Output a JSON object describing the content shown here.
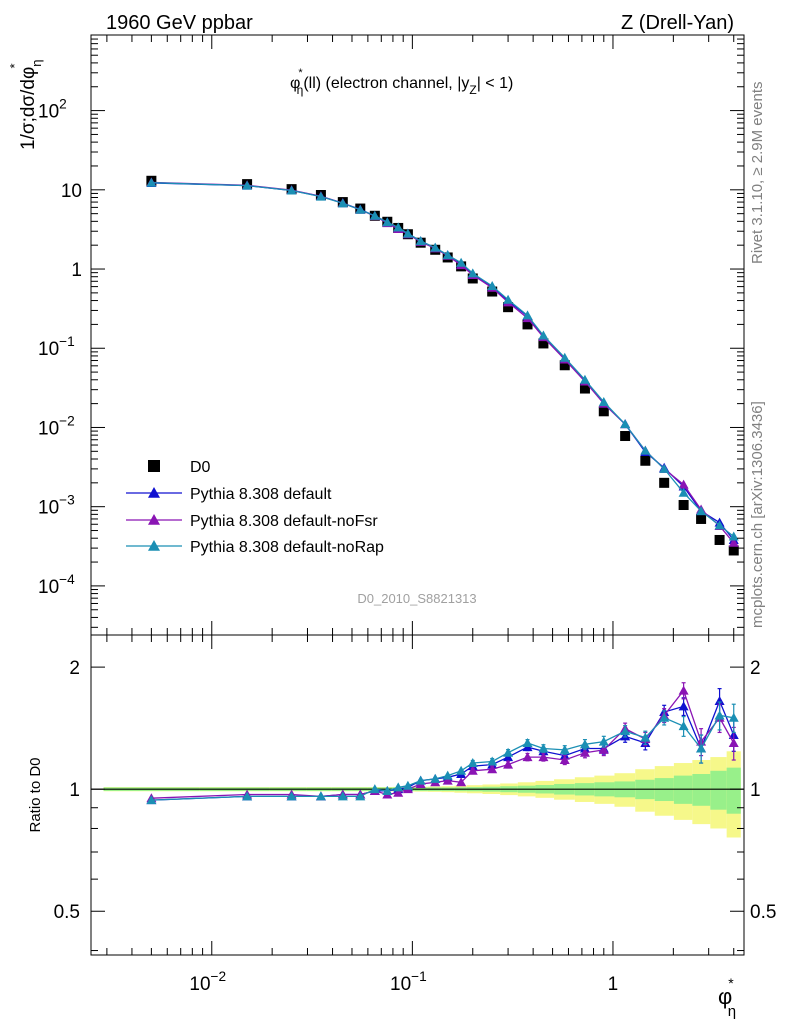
{
  "header": {
    "left": "1960 GeV ppbar",
    "right": "Z (Drell-Yan)"
  },
  "side_labels": {
    "rivet": "Rivet 3.1.10, ≥ 2.9M events",
    "mcplots": "mcplots.cern.ch [arXiv:1306.3436]"
  },
  "watermark": "D0_2010_S8821313",
  "chart_data": [
    {
      "type": "scatter",
      "title": "φ*η(ll) (electron channel, |yZ| < 1)",
      "title_parts": {
        "phi": "φ",
        "star": "*",
        "eta": "η",
        "after_phi": "(ll) (electron channel, |y",
        "z": "Z",
        "tail": "| < 1)"
      },
      "ylabel": "1/σ;dσ/dφ*η",
      "ylabel_parts": {
        "main": "1/σ;dσ/dφ",
        "eta": "η",
        "star": "*"
      },
      "xlabel": "φ*η",
      "xlabel_parts": {
        "phi": "φ",
        "eta": "η",
        "star": "*"
      },
      "xscale": "log",
      "yscale": "log",
      "xlim": [
        0.0025,
        4.5
      ],
      "ylim": [
        2.4e-05,
        900
      ],
      "x_ticks": [
        {
          "base": "10",
          "exp": "−2",
          "v": 0.01
        },
        {
          "base": "10",
          "exp": "−1",
          "v": 0.1
        },
        {
          "base": "1",
          "exp": "",
          "v": 1
        }
      ],
      "y_ticks": [
        {
          "base": "10",
          "exp": "−4",
          "v": 0.0001
        },
        {
          "base": "10",
          "exp": "−3",
          "v": 0.001
        },
        {
          "base": "10",
          "exp": "−2",
          "v": 0.01
        },
        {
          "base": "10",
          "exp": "−1",
          "v": 0.1
        },
        {
          "base": "1",
          "exp": "",
          "v": 1
        },
        {
          "base": "10",
          "exp": "",
          "v": 10
        },
        {
          "base": "10",
          "exp": "2",
          "v": 100
        }
      ],
      "legend_position": "bottom-left",
      "x": [
        0.005,
        0.015,
        0.025,
        0.035,
        0.045,
        0.055,
        0.065,
        0.075,
        0.085,
        0.095,
        0.11,
        0.13,
        0.15,
        0.175,
        0.2,
        0.25,
        0.3,
        0.375,
        0.45,
        0.575,
        0.725,
        0.9,
        1.15,
        1.45,
        1.8,
        2.25,
        2.75,
        3.4,
        4.0
      ],
      "series": [
        {
          "name": "D0",
          "color": "#000000",
          "marker": "square",
          "values": [
            13.0,
            11.8,
            10.2,
            8.6,
            7.0,
            5.8,
            4.7,
            3.95,
            3.3,
            2.75,
            2.15,
            1.75,
            1.4,
            1.08,
            0.76,
            0.52,
            0.33,
            0.2,
            0.115,
            0.061,
            0.031,
            0.016,
            0.0078,
            0.0038,
            0.002,
            0.00105,
            0.0007,
            0.00038,
            0.00028
          ]
        },
        {
          "name": "Pythia 8.308 default",
          "color": "#1010d0",
          "marker": "triangle",
          "values": [
            12.2,
            11.3,
            9.8,
            8.25,
            6.8,
            5.65,
            4.7,
            3.9,
            3.3,
            2.8,
            2.25,
            1.85,
            1.5,
            1.18,
            0.87,
            0.6,
            0.395,
            0.255,
            0.142,
            0.074,
            0.039,
            0.02,
            0.011,
            0.0049,
            0.0031,
            0.0018,
            0.00088,
            0.00063,
            0.00038
          ]
        },
        {
          "name": "Pythia 8.308 default-noFsr",
          "color": "#8a14b4",
          "marker": "triangle",
          "values": [
            12.4,
            11.4,
            9.9,
            8.3,
            6.8,
            5.6,
            4.65,
            3.8,
            3.2,
            2.75,
            2.2,
            1.82,
            1.47,
            1.12,
            0.84,
            0.58,
            0.38,
            0.24,
            0.138,
            0.072,
            0.038,
            0.02,
            0.011,
            0.0051,
            0.003,
            0.0019,
            0.00092,
            0.00057,
            0.00035
          ]
        },
        {
          "name": "Pythia 8.308 default-noRap",
          "color": "#1b8fb4",
          "marker": "triangle",
          "values": [
            12.3,
            11.3,
            9.8,
            8.2,
            6.75,
            5.6,
            4.7,
            3.9,
            3.35,
            2.8,
            2.25,
            1.86,
            1.5,
            1.2,
            0.88,
            0.61,
            0.41,
            0.26,
            0.145,
            0.076,
            0.04,
            0.021,
            0.011,
            0.0051,
            0.003,
            0.0015,
            0.00088,
            0.00058,
            0.00042
          ]
        }
      ]
    },
    {
      "type": "line",
      "ylabel": "Ratio to D0",
      "yscale": "log",
      "ylim": [
        0.39,
        2.4
      ],
      "y_ticks": [
        {
          "label": "0.5",
          "v": 0.5
        },
        {
          "label": "1",
          "v": 1
        },
        {
          "label": "2",
          "v": 2
        }
      ],
      "band_colors": {
        "inner": "#98f08a",
        "outer": "#f6f88a"
      },
      "band_inner_halfwidth": [
        0.01,
        0.01,
        0.01,
        0.01,
        0.01,
        0.01,
        0.01,
        0.01,
        0.01,
        0.01,
        0.01,
        0.01,
        0.01,
        0.011,
        0.012,
        0.014,
        0.017,
        0.02,
        0.024,
        0.03,
        0.035,
        0.04,
        0.045,
        0.055,
        0.065,
        0.08,
        0.09,
        0.11,
        0.13
      ],
      "band_outer_halfwidth": [
        0.012,
        0.012,
        0.012,
        0.012,
        0.012,
        0.012,
        0.012,
        0.012,
        0.013,
        0.013,
        0.014,
        0.015,
        0.017,
        0.02,
        0.023,
        0.027,
        0.033,
        0.04,
        0.048,
        0.058,
        0.07,
        0.08,
        0.095,
        0.12,
        0.14,
        0.16,
        0.18,
        0.2,
        0.24
      ],
      "series": [
        {
          "name": "Pythia 8.308 default",
          "color": "#1010d0",
          "values": [
            0.94,
            0.96,
            0.96,
            0.96,
            0.97,
            0.97,
            0.99,
            0.99,
            1.0,
            1.01,
            1.05,
            1.06,
            1.07,
            1.09,
            1.14,
            1.15,
            1.2,
            1.27,
            1.24,
            1.21,
            1.26,
            1.26,
            1.35,
            1.3,
            1.55,
            1.6,
            1.26,
            1.65,
            1.36
          ],
          "errors": [
            0.01,
            0.01,
            0.01,
            0.01,
            0.01,
            0.01,
            0.01,
            0.01,
            0.01,
            0.01,
            0.012,
            0.012,
            0.013,
            0.015,
            0.017,
            0.02,
            0.022,
            0.025,
            0.027,
            0.03,
            0.035,
            0.04,
            0.045,
            0.05,
            0.06,
            0.08,
            0.1,
            0.12,
            0.12
          ]
        },
        {
          "name": "Pythia 8.308 default-noFsr",
          "color": "#8a14b4",
          "values": [
            0.95,
            0.97,
            0.97,
            0.96,
            0.97,
            0.97,
            0.99,
            0.97,
            0.98,
            1.0,
            1.03,
            1.04,
            1.05,
            1.04,
            1.11,
            1.12,
            1.15,
            1.2,
            1.2,
            1.18,
            1.23,
            1.25,
            1.41,
            1.33,
            1.52,
            1.75,
            1.31,
            1.5,
            1.3
          ],
          "errors": [
            0.01,
            0.01,
            0.01,
            0.01,
            0.01,
            0.01,
            0.01,
            0.01,
            0.01,
            0.01,
            0.012,
            0.012,
            0.013,
            0.015,
            0.017,
            0.02,
            0.022,
            0.025,
            0.027,
            0.03,
            0.035,
            0.04,
            0.045,
            0.05,
            0.06,
            0.08,
            0.1,
            0.12,
            0.12
          ]
        },
        {
          "name": "Pythia 8.308 default-noRap",
          "color": "#1b8fb4",
          "values": [
            0.94,
            0.96,
            0.96,
            0.96,
            0.96,
            0.96,
            1.0,
            0.99,
            1.01,
            1.02,
            1.05,
            1.06,
            1.08,
            1.11,
            1.16,
            1.17,
            1.23,
            1.3,
            1.26,
            1.25,
            1.29,
            1.31,
            1.39,
            1.34,
            1.5,
            1.43,
            1.26,
            1.52,
            1.5
          ],
          "errors": [
            0.01,
            0.01,
            0.01,
            0.01,
            0.01,
            0.01,
            0.01,
            0.01,
            0.01,
            0.01,
            0.012,
            0.012,
            0.013,
            0.015,
            0.017,
            0.02,
            0.022,
            0.025,
            0.027,
            0.03,
            0.035,
            0.04,
            0.045,
            0.05,
            0.06,
            0.08,
            0.1,
            0.12,
            0.12
          ]
        }
      ]
    }
  ]
}
